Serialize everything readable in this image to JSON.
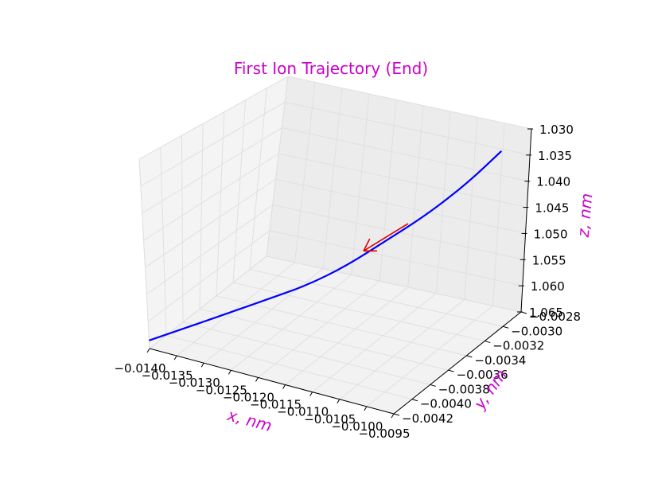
{
  "chart_data": {
    "type": "line",
    "projection": "3d",
    "title": "First Ion Trajectory (End)",
    "xlabel": "x, nm",
    "ylabel": "y, nm",
    "zlabel": "z, nm",
    "xlim": [
      -0.014,
      -0.0095
    ],
    "ylim": [
      -0.0042,
      -0.0028
    ],
    "zlim": [
      1.03,
      1.065
    ],
    "z_inverted": true,
    "x_ticks": [
      "−0.0140",
      "−0.0135",
      "−0.0130",
      "−0.0125",
      "−0.0120",
      "−0.0115",
      "−0.0110",
      "−0.0105",
      "−0.0100",
      "−0.0095"
    ],
    "y_ticks": [
      "−0.0042",
      "−0.0040",
      "−0.0038",
      "−0.0036",
      "−0.0034",
      "−0.0032",
      "−0.0030",
      "−0.0028"
    ],
    "z_ticks": [
      "1.030",
      "1.035",
      "1.040",
      "1.045",
      "1.050",
      "1.055",
      "1.060",
      "1.065"
    ],
    "grid": true,
    "series": [
      {
        "kind": "trajectory",
        "color": "#0000ff",
        "x": [
          -0.014,
          -0.0135,
          -0.013,
          -0.0125,
          -0.012,
          -0.0115,
          -0.011,
          -0.0105,
          -0.01,
          -0.0095
        ],
        "y": [
          -0.0042,
          -0.00405,
          -0.0039,
          -0.00374,
          -0.00358,
          -0.00342,
          -0.00325,
          -0.00308,
          -0.0029,
          -0.0028
        ],
        "z": [
          1.0635,
          1.0615,
          1.0595,
          1.0575,
          1.0555,
          1.0525,
          1.0485,
          1.0445,
          1.0395,
          1.0335
        ]
      },
      {
        "kind": "arrow",
        "color": "#dd0000",
        "from": [
          -0.0107,
          -0.00318,
          1.0455
        ],
        "to": [
          -0.0113,
          -0.00334,
          1.0502
        ]
      }
    ],
    "text_color": "#cc00cc"
  }
}
